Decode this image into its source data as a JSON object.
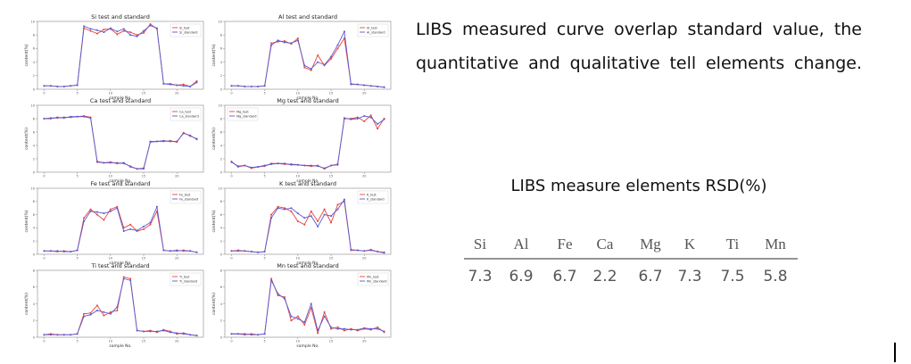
{
  "chart_data": [
    {
      "type": "line",
      "title": "Si test and standard",
      "xlabel": "sample No.",
      "ylabel": "content(%)",
      "legend": "upper right",
      "x": [
        0,
        1,
        2,
        3,
        4,
        5,
        6,
        7,
        8,
        9,
        10,
        11,
        12,
        13,
        14,
        15,
        16,
        17,
        18,
        19,
        20,
        21,
        22,
        23
      ],
      "xlim": [
        -1,
        24
      ],
      "xticks": [
        0,
        5,
        10,
        15,
        20
      ],
      "ylim": [
        0,
        10
      ],
      "yticks": [
        0,
        2,
        4,
        6,
        8,
        10
      ],
      "series": [
        {
          "name": "Si_test",
          "color": "#e8423a",
          "values": [
            0.5,
            0.5,
            0.4,
            0.4,
            0.5,
            0.6,
            9.0,
            8.6,
            8.2,
            8.8,
            8.9,
            8.1,
            8.6,
            8.4,
            8.0,
            8.3,
            9.6,
            8.9,
            0.8,
            0.8,
            0.6,
            0.7,
            0.4,
            1.2
          ]
        },
        {
          "name": "Si_standard",
          "color": "#5a5ad6",
          "values": [
            0.5,
            0.5,
            0.4,
            0.4,
            0.5,
            0.6,
            9.3,
            8.9,
            8.7,
            8.4,
            9.0,
            8.5,
            8.9,
            8.0,
            7.8,
            8.6,
            9.4,
            9.0,
            0.8,
            0.7,
            0.6,
            0.5,
            0.4,
            1.0
          ]
        }
      ]
    },
    {
      "type": "line",
      "title": "Al test and standard",
      "xlabel": "sample No.",
      "ylabel": "content(%)",
      "legend": "upper right",
      "x": [
        0,
        1,
        2,
        3,
        4,
        5,
        6,
        7,
        8,
        9,
        10,
        11,
        12,
        13,
        14,
        15,
        16,
        17,
        18,
        19,
        20,
        21,
        22,
        23
      ],
      "xlim": [
        -1,
        24
      ],
      "xticks": [
        0,
        5,
        10,
        15,
        20
      ],
      "ylim": [
        0,
        10
      ],
      "yticks": [
        0,
        2,
        4,
        6,
        8,
        10
      ],
      "series": [
        {
          "name": "Al_test",
          "color": "#e8423a",
          "values": [
            0.5,
            0.5,
            0.4,
            0.4,
            0.4,
            0.5,
            6.8,
            7.0,
            7.1,
            6.7,
            7.5,
            3.2,
            2.8,
            5.0,
            3.5,
            4.5,
            6.0,
            7.5,
            0.8,
            0.7,
            0.6,
            0.5,
            0.4,
            0.3
          ]
        },
        {
          "name": "Al_standard",
          "color": "#5a5ad6",
          "values": [
            0.5,
            0.5,
            0.4,
            0.4,
            0.4,
            0.5,
            6.5,
            7.2,
            6.9,
            6.8,
            7.2,
            3.5,
            3.0,
            4.0,
            3.6,
            4.8,
            6.5,
            8.5,
            0.7,
            0.7,
            0.6,
            0.5,
            0.4,
            0.3
          ]
        }
      ]
    },
    {
      "type": "line",
      "title": "Ca test and standard",
      "xlabel": "sample No.",
      "ylabel": "content(%)",
      "legend": "upper right",
      "x": [
        0,
        1,
        2,
        3,
        4,
        5,
        6,
        7,
        8,
        9,
        10,
        11,
        12,
        13,
        14,
        15,
        16,
        17,
        18,
        19,
        20,
        21,
        22,
        23
      ],
      "xlim": [
        -1,
        24
      ],
      "xticks": [
        0,
        5,
        10,
        15,
        20
      ],
      "ylim": [
        0,
        10
      ],
      "yticks": [
        0,
        2,
        4,
        6,
        8,
        10
      ],
      "series": [
        {
          "name": "Ca_test",
          "color": "#e8423a",
          "values": [
            8.0,
            8.1,
            8.1,
            8.2,
            8.2,
            8.3,
            8.4,
            8.2,
            1.5,
            1.4,
            1.4,
            1.4,
            1.3,
            0.9,
            0.5,
            0.5,
            4.6,
            4.6,
            4.6,
            4.7,
            4.5,
            5.9,
            5.4,
            5.0
          ]
        },
        {
          "name": "Ca_standard",
          "color": "#5a5ad6",
          "values": [
            8.0,
            8.0,
            8.2,
            8.1,
            8.3,
            8.3,
            8.3,
            8.1,
            1.6,
            1.4,
            1.5,
            1.3,
            1.4,
            0.8,
            0.5,
            0.6,
            4.5,
            4.6,
            4.7,
            4.6,
            4.6,
            5.8,
            5.5,
            4.9
          ]
        }
      ]
    },
    {
      "type": "line",
      "title": "Mg test and standard",
      "xlabel": "sample No.",
      "ylabel": "content(%)",
      "legend": "upper left",
      "x": [
        0,
        1,
        2,
        3,
        4,
        5,
        6,
        7,
        8,
        9,
        10,
        11,
        12,
        13,
        14,
        15,
        16,
        17,
        18,
        19,
        20,
        21,
        22,
        23
      ],
      "xlim": [
        -1,
        24
      ],
      "xticks": [
        0,
        5,
        10,
        15,
        20
      ],
      "ylim": [
        0,
        10
      ],
      "yticks": [
        0,
        2,
        4,
        6,
        8,
        10
      ],
      "series": [
        {
          "name": "Mg_test",
          "color": "#e8423a",
          "values": [
            1.6,
            0.8,
            1.0,
            0.6,
            0.8,
            0.9,
            1.3,
            1.3,
            1.2,
            1.2,
            1.1,
            1.0,
            0.9,
            1.0,
            0.5,
            1.0,
            1.2,
            8.0,
            8.0,
            8.2,
            7.6,
            8.5,
            6.5,
            8.0
          ]
        },
        {
          "name": "Mg_standard",
          "color": "#5a5ad6",
          "values": [
            1.5,
            0.9,
            1.0,
            0.7,
            0.8,
            1.0,
            1.2,
            1.3,
            1.3,
            1.1,
            1.1,
            1.0,
            1.0,
            0.9,
            0.6,
            1.0,
            1.1,
            8.1,
            7.9,
            8.0,
            8.4,
            8.2,
            7.2,
            7.9
          ]
        }
      ]
    },
    {
      "type": "line",
      "title": "Fe test and standard",
      "xlabel": "sample No.",
      "ylabel": "content(%)",
      "legend": "upper right",
      "x": [
        0,
        1,
        2,
        3,
        4,
        5,
        6,
        7,
        8,
        9,
        10,
        11,
        12,
        13,
        14,
        15,
        16,
        17,
        18,
        19,
        20,
        21,
        22,
        23
      ],
      "xlim": [
        -1,
        24
      ],
      "xticks": [
        0,
        5,
        10,
        15,
        20
      ],
      "ylim": [
        0,
        10
      ],
      "yticks": [
        0,
        2,
        4,
        6,
        8,
        10
      ],
      "series": [
        {
          "name": "Fe_test",
          "color": "#e8423a",
          "values": [
            0.5,
            0.5,
            0.4,
            0.5,
            0.4,
            0.6,
            5.5,
            6.8,
            6.0,
            5.2,
            6.8,
            7.2,
            4.0,
            4.5,
            3.5,
            3.8,
            4.5,
            6.5,
            0.6,
            0.5,
            0.5,
            0.6,
            0.5,
            0.3
          ]
        },
        {
          "name": "Fe_standard",
          "color": "#5a5ad6",
          "values": [
            0.5,
            0.5,
            0.5,
            0.4,
            0.4,
            0.6,
            5.0,
            6.5,
            6.4,
            6.2,
            6.5,
            7.0,
            3.5,
            3.8,
            3.6,
            4.2,
            4.8,
            7.2,
            0.6,
            0.5,
            0.6,
            0.5,
            0.5,
            0.3
          ]
        }
      ]
    },
    {
      "type": "line",
      "title": "K test and standard",
      "xlabel": "sample No.",
      "ylabel": "content(%)",
      "legend": "upper right",
      "x": [
        0,
        1,
        2,
        3,
        4,
        5,
        6,
        7,
        8,
        9,
        10,
        11,
        12,
        13,
        14,
        15,
        16,
        17,
        18,
        19,
        20,
        21,
        22,
        23
      ],
      "xlim": [
        -1,
        24
      ],
      "xticks": [
        0,
        5,
        10,
        15,
        20
      ],
      "ylim": [
        0,
        10
      ],
      "yticks": [
        0,
        2,
        4,
        6,
        8,
        10
      ],
      "series": [
        {
          "name": "K_test",
          "color": "#e8423a",
          "values": [
            0.5,
            0.6,
            0.5,
            0.4,
            0.3,
            0.4,
            6.0,
            7.2,
            7.0,
            6.5,
            5.0,
            4.5,
            6.5,
            5.0,
            6.8,
            4.8,
            7.5,
            8.0,
            0.6,
            0.6,
            0.5,
            0.7,
            0.4,
            0.2
          ]
        },
        {
          "name": "K_standard",
          "color": "#5a5ad6",
          "values": [
            0.5,
            0.5,
            0.5,
            0.4,
            0.3,
            0.4,
            5.5,
            7.0,
            6.8,
            7.0,
            6.2,
            5.5,
            5.8,
            4.2,
            6.0,
            5.8,
            6.8,
            8.3,
            0.7,
            0.6,
            0.5,
            0.6,
            0.4,
            0.3
          ]
        }
      ]
    },
    {
      "type": "line",
      "title": "Ti test and standard",
      "xlabel": "sample No.",
      "ylabel": "content(%)",
      "legend": "upper right",
      "x": [
        0,
        1,
        2,
        3,
        4,
        5,
        6,
        7,
        8,
        9,
        10,
        11,
        12,
        13,
        14,
        15,
        16,
        17,
        18,
        19,
        20,
        21,
        22,
        23
      ],
      "xlim": [
        -1,
        24
      ],
      "xticks": [
        0,
        5,
        10,
        15,
        20
      ],
      "ylim": [
        0,
        8
      ],
      "yticks": [
        0,
        2,
        4,
        6,
        8
      ],
      "series": [
        {
          "name": "Ti_test",
          "color": "#e8423a",
          "values": [
            0.3,
            0.4,
            0.3,
            0.3,
            0.3,
            0.4,
            2.8,
            2.9,
            3.8,
            2.6,
            3.0,
            3.2,
            7.2,
            7.0,
            0.8,
            0.7,
            0.8,
            0.6,
            0.9,
            0.7,
            0.4,
            0.5,
            0.3,
            0.2
          ]
        },
        {
          "name": "Ti_standard",
          "color": "#5a5ad6",
          "values": [
            0.3,
            0.3,
            0.3,
            0.3,
            0.3,
            0.4,
            2.5,
            2.7,
            3.2,
            3.0,
            2.8,
            3.6,
            7.0,
            6.8,
            0.8,
            0.7,
            0.7,
            0.7,
            0.8,
            0.6,
            0.5,
            0.4,
            0.3,
            0.2
          ]
        }
      ]
    },
    {
      "type": "line",
      "title": "Mn test and standard",
      "xlabel": "sample No.",
      "ylabel": "content(%)",
      "legend": "upper right",
      "x": [
        0,
        1,
        2,
        3,
        4,
        5,
        6,
        7,
        8,
        9,
        10,
        11,
        12,
        13,
        14,
        15,
        16,
        17,
        18,
        19,
        20,
        21,
        22,
        23
      ],
      "xlim": [
        -1,
        24
      ],
      "xticks": [
        0,
        5,
        10,
        15,
        20
      ],
      "ylim": [
        0,
        8
      ],
      "yticks": [
        0,
        2,
        4,
        6,
        8
      ],
      "series": [
        {
          "name": "Mn_test",
          "color": "#e8423a",
          "values": [
            0.4,
            0.4,
            0.3,
            0.4,
            0.3,
            0.4,
            7.0,
            5.0,
            4.8,
            2.0,
            2.5,
            1.5,
            3.5,
            0.5,
            3.0,
            1.0,
            1.2,
            0.8,
            1.0,
            0.8,
            1.0,
            0.9,
            1.2,
            0.6
          ]
        },
        {
          "name": "Mn_standard",
          "color": "#5a5ad6",
          "values": [
            0.4,
            0.4,
            0.4,
            0.3,
            0.3,
            0.4,
            6.8,
            5.2,
            4.6,
            2.5,
            2.2,
            1.8,
            4.0,
            0.8,
            2.5,
            1.2,
            1.0,
            1.0,
            0.9,
            0.9,
            1.1,
            1.0,
            1.0,
            0.7
          ]
        }
      ]
    }
  ],
  "caption": "LIBS measured curve overlap standard value, the quantitative and qualitative tell elements change.",
  "table": {
    "title": "LIBS measure elements RSD(%)",
    "header": [
      "Si",
      "Al",
      "Fe",
      "Ca",
      "Mg",
      "K",
      "Ti",
      "Mn"
    ],
    "rows": [
      [
        7.3,
        6.9,
        6.7,
        2.2,
        6.7,
        7.3,
        7.5,
        5.8
      ]
    ]
  }
}
